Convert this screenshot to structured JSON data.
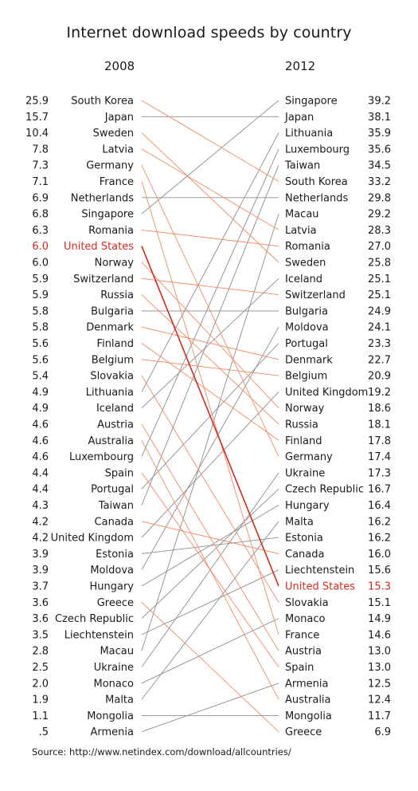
{
  "chart_data": {
    "type": "slope",
    "title": "Internet download speeds by country",
    "left_year": "2008",
    "right_year": "2012",
    "source": "Source: http://www.netindex.com/download/allcountries/",
    "highlight": "United States",
    "colors": {
      "highlight": "#d42a1e",
      "up": "#8c8c8c",
      "down": "#f08a65",
      "text": "#1a1a1a"
    },
    "left": [
      {
        "country": "South Korea",
        "value": "25.9"
      },
      {
        "country": "Japan",
        "value": "15.7"
      },
      {
        "country": "Sweden",
        "value": "10.4"
      },
      {
        "country": "Latvia",
        "value": "7.8"
      },
      {
        "country": "Germany",
        "value": "7.3"
      },
      {
        "country": "France",
        "value": "7.1"
      },
      {
        "country": "Netherlands",
        "value": "6.9"
      },
      {
        "country": "Singapore",
        "value": "6.8"
      },
      {
        "country": "Romania",
        "value": "6.3"
      },
      {
        "country": "United States",
        "value": "6.0"
      },
      {
        "country": "Norway",
        "value": "6.0"
      },
      {
        "country": "Switzerland",
        "value": "5.9"
      },
      {
        "country": "Russia",
        "value": "5.9"
      },
      {
        "country": "Bulgaria",
        "value": "5.8"
      },
      {
        "country": "Denmark",
        "value": "5.8"
      },
      {
        "country": "Finland",
        "value": "5.6"
      },
      {
        "country": "Belgium",
        "value": "5.6"
      },
      {
        "country": "Slovakia",
        "value": "5.4"
      },
      {
        "country": "Lithuania",
        "value": "4.9"
      },
      {
        "country": "Iceland",
        "value": "4.9"
      },
      {
        "country": "Austria",
        "value": "4.6"
      },
      {
        "country": "Australia",
        "value": "4.6"
      },
      {
        "country": "Luxembourg",
        "value": "4.6"
      },
      {
        "country": "Spain",
        "value": "4.4"
      },
      {
        "country": "Portugal",
        "value": "4.4"
      },
      {
        "country": "Taiwan",
        "value": "4.3"
      },
      {
        "country": "Canada",
        "value": "4.2"
      },
      {
        "country": "United Kingdom",
        "value": "4.2"
      },
      {
        "country": "Estonia",
        "value": "3.9"
      },
      {
        "country": "Moldova",
        "value": "3.9"
      },
      {
        "country": "Hungary",
        "value": "3.7"
      },
      {
        "country": "Greece",
        "value": "3.6"
      },
      {
        "country": "Czech Republic",
        "value": "3.6"
      },
      {
        "country": "Liechtenstein",
        "value": "3.5"
      },
      {
        "country": "Macau",
        "value": "2.8"
      },
      {
        "country": "Ukraine",
        "value": "2.5"
      },
      {
        "country": "Monaco",
        "value": "2.0"
      },
      {
        "country": "Malta",
        "value": "1.9"
      },
      {
        "country": "Mongolia",
        "value": "1.1"
      },
      {
        "country": "Armenia",
        "value": ".5"
      }
    ],
    "right": [
      {
        "country": "Singapore",
        "value": "39.2"
      },
      {
        "country": "Japan",
        "value": "38.1"
      },
      {
        "country": "Lithuania",
        "value": "35.9"
      },
      {
        "country": "Luxembourg",
        "value": "35.6"
      },
      {
        "country": "Taiwan",
        "value": "34.5"
      },
      {
        "country": "South Korea",
        "value": "33.2"
      },
      {
        "country": "Netherlands",
        "value": "29.8"
      },
      {
        "country": "Macau",
        "value": "29.2"
      },
      {
        "country": "Latvia",
        "value": "28.3"
      },
      {
        "country": "Romania",
        "value": "27.0"
      },
      {
        "country": "Sweden",
        "value": "25.8"
      },
      {
        "country": "Iceland",
        "value": "25.1"
      },
      {
        "country": "Switzerland",
        "value": "25.1"
      },
      {
        "country": "Bulgaria",
        "value": "24.9"
      },
      {
        "country": "Moldova",
        "value": "24.1"
      },
      {
        "country": "Portugal",
        "value": "23.3"
      },
      {
        "country": "Denmark",
        "value": "22.7"
      },
      {
        "country": "Belgium",
        "value": "20.9"
      },
      {
        "country": "United Kingdom",
        "value": "19.2"
      },
      {
        "country": "Norway",
        "value": "18.6"
      },
      {
        "country": "Russia",
        "value": "18.1"
      },
      {
        "country": "Finland",
        "value": "17.8"
      },
      {
        "country": "Germany",
        "value": "17.4"
      },
      {
        "country": "Ukraine",
        "value": "17.3"
      },
      {
        "country": "Czech Republic",
        "value": "16.7"
      },
      {
        "country": "Hungary",
        "value": "16.4"
      },
      {
        "country": "Malta",
        "value": "16.2"
      },
      {
        "country": "Estonia",
        "value": "16.2"
      },
      {
        "country": "Canada",
        "value": "16.0"
      },
      {
        "country": "Liechtenstein",
        "value": "15.6"
      },
      {
        "country": "United States",
        "value": "15.3"
      },
      {
        "country": "Slovakia",
        "value": "15.1"
      },
      {
        "country": "Monaco",
        "value": "14.9"
      },
      {
        "country": "France",
        "value": "14.6"
      },
      {
        "country": "Austria",
        "value": "13.0"
      },
      {
        "country": "Spain",
        "value": "13.0"
      },
      {
        "country": "Armenia",
        "value": "12.5"
      },
      {
        "country": "Australia",
        "value": "12.4"
      },
      {
        "country": "Mongolia",
        "value": "11.7"
      },
      {
        "country": "Greece",
        "value": "6.9"
      }
    ]
  }
}
